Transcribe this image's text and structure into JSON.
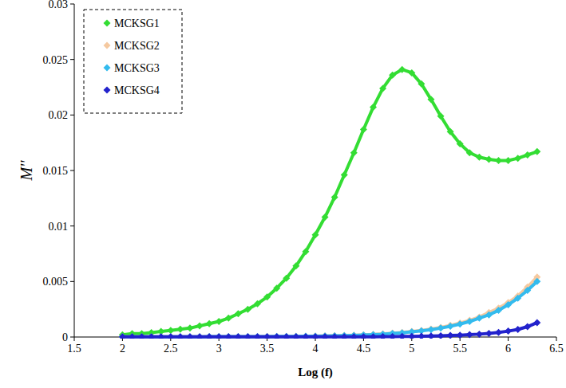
{
  "chart_data": {
    "type": "line",
    "x_label": "Log (f)",
    "y_label": "M''",
    "x": [
      2.0,
      2.1,
      2.2,
      2.3,
      2.4,
      2.5,
      2.6,
      2.7,
      2.8,
      2.9,
      3.0,
      3.1,
      3.2,
      3.3,
      3.4,
      3.5,
      3.6,
      3.7,
      3.8,
      3.9,
      4.0,
      4.1,
      4.2,
      4.3,
      4.4,
      4.5,
      4.6,
      4.7,
      4.8,
      4.9,
      5.0,
      5.1,
      5.2,
      5.3,
      5.4,
      5.5,
      5.6,
      5.7,
      5.8,
      5.9,
      6.0,
      6.1,
      6.2,
      6.3
    ],
    "series": [
      {
        "name": "MCKSG1",
        "color": "#33dd33",
        "marker": "diamond",
        "values": [
          0.0002,
          0.0003,
          0.0003,
          0.0004,
          0.0005,
          0.0006,
          0.0007,
          0.0008,
          0.001,
          0.0012,
          0.0014,
          0.0017,
          0.0021,
          0.0025,
          0.003,
          0.0036,
          0.0044,
          0.0053,
          0.0064,
          0.0077,
          0.0092,
          0.0108,
          0.0126,
          0.0146,
          0.0166,
          0.0187,
          0.0207,
          0.0224,
          0.0236,
          0.0241,
          0.0238,
          0.0228,
          0.0214,
          0.0199,
          0.0185,
          0.0174,
          0.0166,
          0.0162,
          0.016,
          0.0159,
          0.0159,
          0.0161,
          0.0164,
          0.0167
        ]
      },
      {
        "name": "MCKSG2",
        "color": "#f5c9a0",
        "marker": "diamond",
        "values": [
          2e-05,
          2e-05,
          2e-05,
          2e-05,
          2e-05,
          2e-05,
          2e-05,
          2e-05,
          2e-05,
          3e-05,
          3e-05,
          3e-05,
          3e-05,
          4e-05,
          4e-05,
          5e-05,
          5e-05,
          6e-05,
          7e-05,
          8e-05,
          9e-05,
          0.0001,
          0.00012,
          0.00014,
          0.00017,
          0.0002,
          0.00024,
          0.00029,
          0.00035,
          0.00042,
          0.0005,
          0.0006,
          0.00072,
          0.00087,
          0.00105,
          0.00126,
          0.0015,
          0.0018,
          0.0022,
          0.0026,
          0.0031,
          0.0037,
          0.0045,
          0.0054
        ]
      },
      {
        "name": "MCKSG3",
        "color": "#33bbee",
        "marker": "diamond",
        "values": [
          2e-05,
          2e-05,
          2e-05,
          2e-05,
          2e-05,
          2e-05,
          2e-05,
          2e-05,
          2e-05,
          3e-05,
          3e-05,
          3e-05,
          3e-05,
          3e-05,
          4e-05,
          4e-05,
          5e-05,
          5e-05,
          6e-05,
          7e-05,
          8e-05,
          9e-05,
          0.00011,
          0.00013,
          0.00015,
          0.00018,
          0.00022,
          0.00026,
          0.00032,
          0.00038,
          0.00046,
          0.00055,
          0.00066,
          0.0008,
          0.00097,
          0.00117,
          0.0014,
          0.0017,
          0.002,
          0.0024,
          0.0029,
          0.0035,
          0.0042,
          0.005
        ]
      },
      {
        "name": "MCKSG4",
        "color": "#2222cc",
        "marker": "diamond",
        "values": [
          1e-05,
          1e-05,
          1e-05,
          1e-05,
          1e-05,
          1e-05,
          1e-05,
          1e-05,
          1e-05,
          1e-05,
          1e-05,
          1e-05,
          1e-05,
          1e-05,
          1e-05,
          1e-05,
          1e-05,
          1e-05,
          1e-05,
          1e-05,
          1e-05,
          1e-05,
          1e-05,
          1e-05,
          1e-05,
          2e-05,
          2e-05,
          3e-05,
          4e-05,
          5e-05,
          6e-05,
          7e-05,
          9e-05,
          0.00011,
          0.00014,
          0.00017,
          0.00021,
          0.00026,
          0.00033,
          0.00042,
          0.00053,
          0.00068,
          0.00093,
          0.0013
        ]
      }
    ],
    "xlim": [
      1.5,
      6.5
    ],
    "xticks": [
      1.5,
      2,
      2.5,
      3,
      3.5,
      4,
      4.5,
      5,
      5.5,
      6,
      6.5
    ],
    "ylim": [
      0,
      0.03
    ],
    "yticks": [
      0,
      0.005,
      0.01,
      0.015,
      0.02,
      0.025,
      0.03
    ],
    "grid": false,
    "legend": "top-left"
  }
}
